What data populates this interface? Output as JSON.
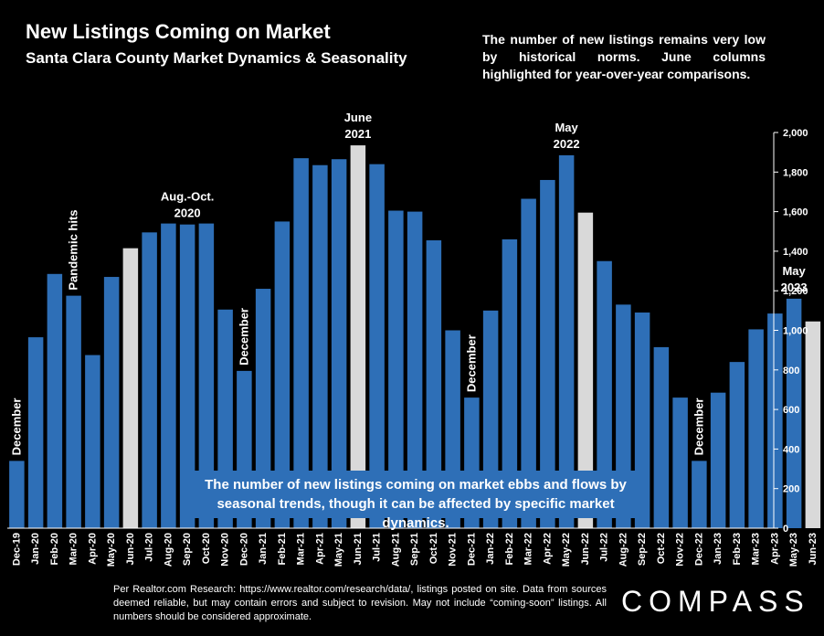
{
  "header": {
    "title": "New Listings Coming on Market",
    "subtitle": "Santa Clara County Market Dynamics & Seasonality",
    "note": "The number of new listings remains very low by historical norms. June columns highlighted for year-over-year comparisons."
  },
  "callout": "The number of new listings coming on market ebbs and flows by seasonal trends, though it can be affected by specific market dynamics.",
  "source": "Per Realtor.com Research: https://www.realtor.com/research/data/, listings posted on site. Data from sources deemed reliable, but may contain errors and subject to revision. May not include “coming-soon” listings. All numbers should be considered approximate.",
  "logo": "COMPASS",
  "colors": {
    "bar": "#2e6fb7",
    "highlight": "#d9d9d9",
    "background": "#000000"
  },
  "chart_data": {
    "type": "bar",
    "categories": [
      "Dec-19",
      "Jan-20",
      "Feb-20",
      "Mar-20",
      "Apr-20",
      "May-20",
      "Jun-20",
      "Jul-20",
      "Aug-20",
      "Sep-20",
      "Oct-20",
      "Nov-20",
      "Dec-20",
      "Jan-21",
      "Feb-21",
      "Mar-21",
      "Apr-21",
      "May-21",
      "Jun-21",
      "Jul-21",
      "Aug-21",
      "Sep-21",
      "Oct-21",
      "Nov-21",
      "Dec-21",
      "Jan-22",
      "Feb-22",
      "Mar-22",
      "Apr-22",
      "May-22",
      "Jun-22",
      "Jul-22",
      "Aug-22",
      "Sep-22",
      "Oct-22",
      "Nov-22",
      "Dec-22",
      "Jan-23",
      "Feb-23",
      "Mar-23",
      "Apr-23",
      "May-23",
      "Jun-23"
    ],
    "values": [
      340,
      965,
      1285,
      1175,
      875,
      1270,
      1415,
      1495,
      1540,
      1535,
      1540,
      1105,
      795,
      1210,
      1550,
      1870,
      1835,
      1865,
      1935,
      1840,
      1605,
      1600,
      1455,
      1000,
      660,
      1100,
      1460,
      1665,
      1760,
      1885,
      1595,
      1350,
      1130,
      1090,
      915,
      660,
      340,
      685,
      840,
      1005,
      1085,
      1160,
      1045
    ],
    "highlighted": [
      "Jun-20",
      "Jun-21",
      "Jun-22",
      "Jun-23"
    ],
    "ylim": [
      0,
      2000
    ],
    "yticks": [
      0,
      200,
      400,
      600,
      800,
      1000,
      1200,
      1400,
      1600,
      1800,
      2000
    ],
    "ytick_labels": [
      "0",
      "200",
      "400",
      "600",
      "800",
      "1,000",
      "1,200",
      "1,400",
      "1,600",
      "1,800",
      "2,000"
    ],
    "grid": false,
    "annotations": [
      {
        "category": "Dec-19",
        "text": "December",
        "rotated": true
      },
      {
        "category": "Mar-20",
        "text": "Pandemic hits",
        "rotated": true
      },
      {
        "category": "Sep-20",
        "text": "Aug.-Oct. 2020",
        "lines": [
          "Aug.-Oct.",
          "2020"
        ],
        "rotated": false
      },
      {
        "category": "Dec-20",
        "text": "December",
        "rotated": true
      },
      {
        "category": "Jun-21",
        "text": "June 2021",
        "lines": [
          "June",
          "2021"
        ],
        "rotated": false
      },
      {
        "category": "Dec-21",
        "text": "December",
        "rotated": true
      },
      {
        "category": "May-22",
        "text": "May 2022",
        "lines": [
          "May",
          "2022"
        ],
        "rotated": false
      },
      {
        "category": "Dec-22",
        "text": "December",
        "rotated": true
      },
      {
        "category": "May-23",
        "text": "May 2023",
        "lines": [
          "May",
          "2023"
        ],
        "rotated": false
      }
    ]
  }
}
